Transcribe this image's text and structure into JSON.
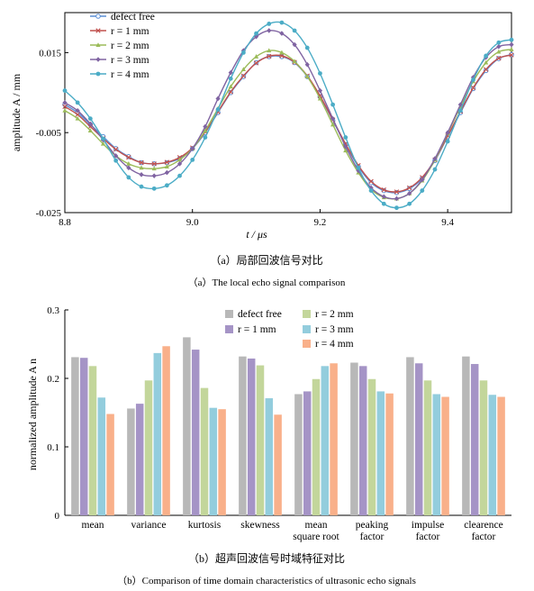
{
  "chart_data": [
    {
      "type": "line",
      "xlabel": "t / μs",
      "ylabel": "amplitude A / mm",
      "xlim": [
        8.8,
        9.5
      ],
      "ylim": [
        -0.025,
        0.025
      ],
      "x_ticks": [
        "8.8",
        "9.0",
        "9.2",
        "9.4"
      ],
      "y_ticks": [
        "0.015",
        "-0.005",
        "-0.025"
      ],
      "caption_cn": "（a）局部回波信号对比",
      "caption_en": "（a）The local echo signal comparison",
      "legend_position": "top-left",
      "x": [
        8.8,
        8.82,
        8.84,
        8.86,
        8.88,
        8.9,
        8.92,
        8.94,
        8.96,
        8.98,
        9.0,
        9.02,
        9.04,
        9.06,
        9.08,
        9.1,
        9.12,
        9.14,
        9.16,
        9.18,
        9.2,
        9.22,
        9.24,
        9.26,
        9.28,
        9.3,
        9.32,
        9.34,
        9.36,
        9.38,
        9.4,
        9.42,
        9.44,
        9.46,
        9.48,
        9.5
      ],
      "series": [
        {
          "name": "defect free",
          "marker": "circle-open",
          "color": "#5b8fd6",
          "values": [
            0.002,
            0.0,
            -0.003,
            -0.006,
            -0.009,
            -0.011,
            -0.0125,
            -0.0128,
            -0.0125,
            -0.0115,
            -0.009,
            -0.005,
            0.0,
            0.005,
            0.009,
            0.0125,
            0.014,
            0.014,
            0.0125,
            0.009,
            0.004,
            -0.002,
            -0.008,
            -0.0135,
            -0.0175,
            -0.0195,
            -0.02,
            -0.019,
            -0.0165,
            -0.012,
            -0.006,
            0.0,
            0.006,
            0.0105,
            0.0135,
            0.0145
          ]
        },
        {
          "name": "r = 1 mm",
          "marker": "x",
          "color": "#c0504d",
          "values": [
            0.0015,
            -0.0005,
            -0.0035,
            -0.0065,
            -0.0092,
            -0.0112,
            -0.0125,
            -0.0128,
            -0.0124,
            -0.0112,
            -0.0088,
            -0.0048,
            0.0002,
            0.0052,
            0.0092,
            0.0124,
            0.0141,
            0.0142,
            0.0126,
            0.0092,
            0.0042,
            -0.0018,
            -0.0078,
            -0.0132,
            -0.0172,
            -0.0193,
            -0.0198,
            -0.0188,
            -0.0162,
            -0.0118,
            -0.0058,
            0.0003,
            0.0062,
            0.0108,
            0.0136,
            0.0144
          ]
        },
        {
          "name": "r = 2 mm",
          "marker": "triangle",
          "color": "#9bbb59",
          "values": [
            0.0005,
            -0.0015,
            -0.0045,
            -0.0078,
            -0.0108,
            -0.0128,
            -0.0138,
            -0.014,
            -0.0135,
            -0.0118,
            -0.009,
            -0.0045,
            0.001,
            0.0065,
            0.0108,
            0.014,
            0.0155,
            0.015,
            0.0128,
            0.009,
            0.0035,
            -0.003,
            -0.0095,
            -0.015,
            -0.0192,
            -0.0212,
            -0.0215,
            -0.0202,
            -0.017,
            -0.0118,
            -0.0052,
            0.0015,
            0.0078,
            0.0125,
            0.0152,
            0.0158
          ]
        },
        {
          "name": "r = 3 mm",
          "marker": "diamond",
          "color": "#8064a2",
          "values": [
            0.0025,
            0.0005,
            -0.0028,
            -0.0068,
            -0.0108,
            -0.0138,
            -0.0155,
            -0.0158,
            -0.015,
            -0.0128,
            -0.009,
            -0.0035,
            0.0035,
            0.01,
            0.0155,
            0.019,
            0.0205,
            0.0198,
            0.017,
            0.012,
            0.0055,
            -0.0015,
            -0.0085,
            -0.0145,
            -0.0188,
            -0.021,
            -0.0215,
            -0.0202,
            -0.0168,
            -0.0115,
            -0.005,
            0.002,
            0.0088,
            0.0138,
            0.0165,
            0.017
          ]
        },
        {
          "name": "r = 4 mm",
          "marker": "circle",
          "color": "#4bacc6",
          "values": [
            0.0055,
            0.0025,
            -0.0015,
            -0.0065,
            -0.012,
            -0.0162,
            -0.0185,
            -0.019,
            -0.0182,
            -0.0158,
            -0.0118,
            -0.0062,
            0.0008,
            0.0085,
            0.015,
            0.0198,
            0.0222,
            0.0225,
            0.0205,
            0.0162,
            0.0098,
            0.002,
            -0.0062,
            -0.0138,
            -0.0195,
            -0.0228,
            -0.0238,
            -0.0228,
            -0.0195,
            -0.0142,
            -0.0072,
            0.0005,
            0.0082,
            0.0142,
            0.0175,
            0.0182
          ]
        }
      ]
    },
    {
      "type": "bar",
      "ylabel": "normalized amplitude A n",
      "ylim": [
        0,
        0.3
      ],
      "y_ticks": [
        "0",
        "0.1",
        "0.2",
        "0.3"
      ],
      "caption_cn": "（b）超声回波信号时域特征对比",
      "caption_en": "（b）Comparison of time domain characteristics of ultrasonic echo signals",
      "legend_position": "top-right",
      "categories": [
        "mean",
        "variance",
        "kurtosis",
        "skewness",
        "mean square root",
        "peaking factor",
        "impulse factor",
        "clearence factor"
      ],
      "category_lines": [
        [
          "mean"
        ],
        [
          "variance"
        ],
        [
          "kurtosis"
        ],
        [
          "skewness"
        ],
        [
          "mean",
          "square root"
        ],
        [
          "peaking",
          "factor"
        ],
        [
          "impulse",
          "factor"
        ],
        [
          "clearence",
          "factor"
        ]
      ],
      "series": [
        {
          "name": "defect free",
          "color": "#b8b8b8",
          "values": [
            0.231,
            0.156,
            0.26,
            0.232,
            0.177,
            0.223,
            0.231,
            0.232
          ]
        },
        {
          "name": "r = 1 mm",
          "color": "#a594c6",
          "values": [
            0.23,
            0.163,
            0.242,
            0.229,
            0.181,
            0.218,
            0.222,
            0.221
          ]
        },
        {
          "name": "r = 2 mm",
          "color": "#c3d69b",
          "values": [
            0.218,
            0.197,
            0.186,
            0.219,
            0.199,
            0.199,
            0.197,
            0.197
          ]
        },
        {
          "name": "r = 3 mm",
          "color": "#93cddd",
          "values": [
            0.172,
            0.237,
            0.157,
            0.171,
            0.218,
            0.181,
            0.177,
            0.176
          ]
        },
        {
          "name": "r = 4 mm",
          "color": "#f9b08a",
          "values": [
            0.148,
            0.247,
            0.155,
            0.147,
            0.222,
            0.178,
            0.173,
            0.173
          ]
        }
      ]
    }
  ]
}
